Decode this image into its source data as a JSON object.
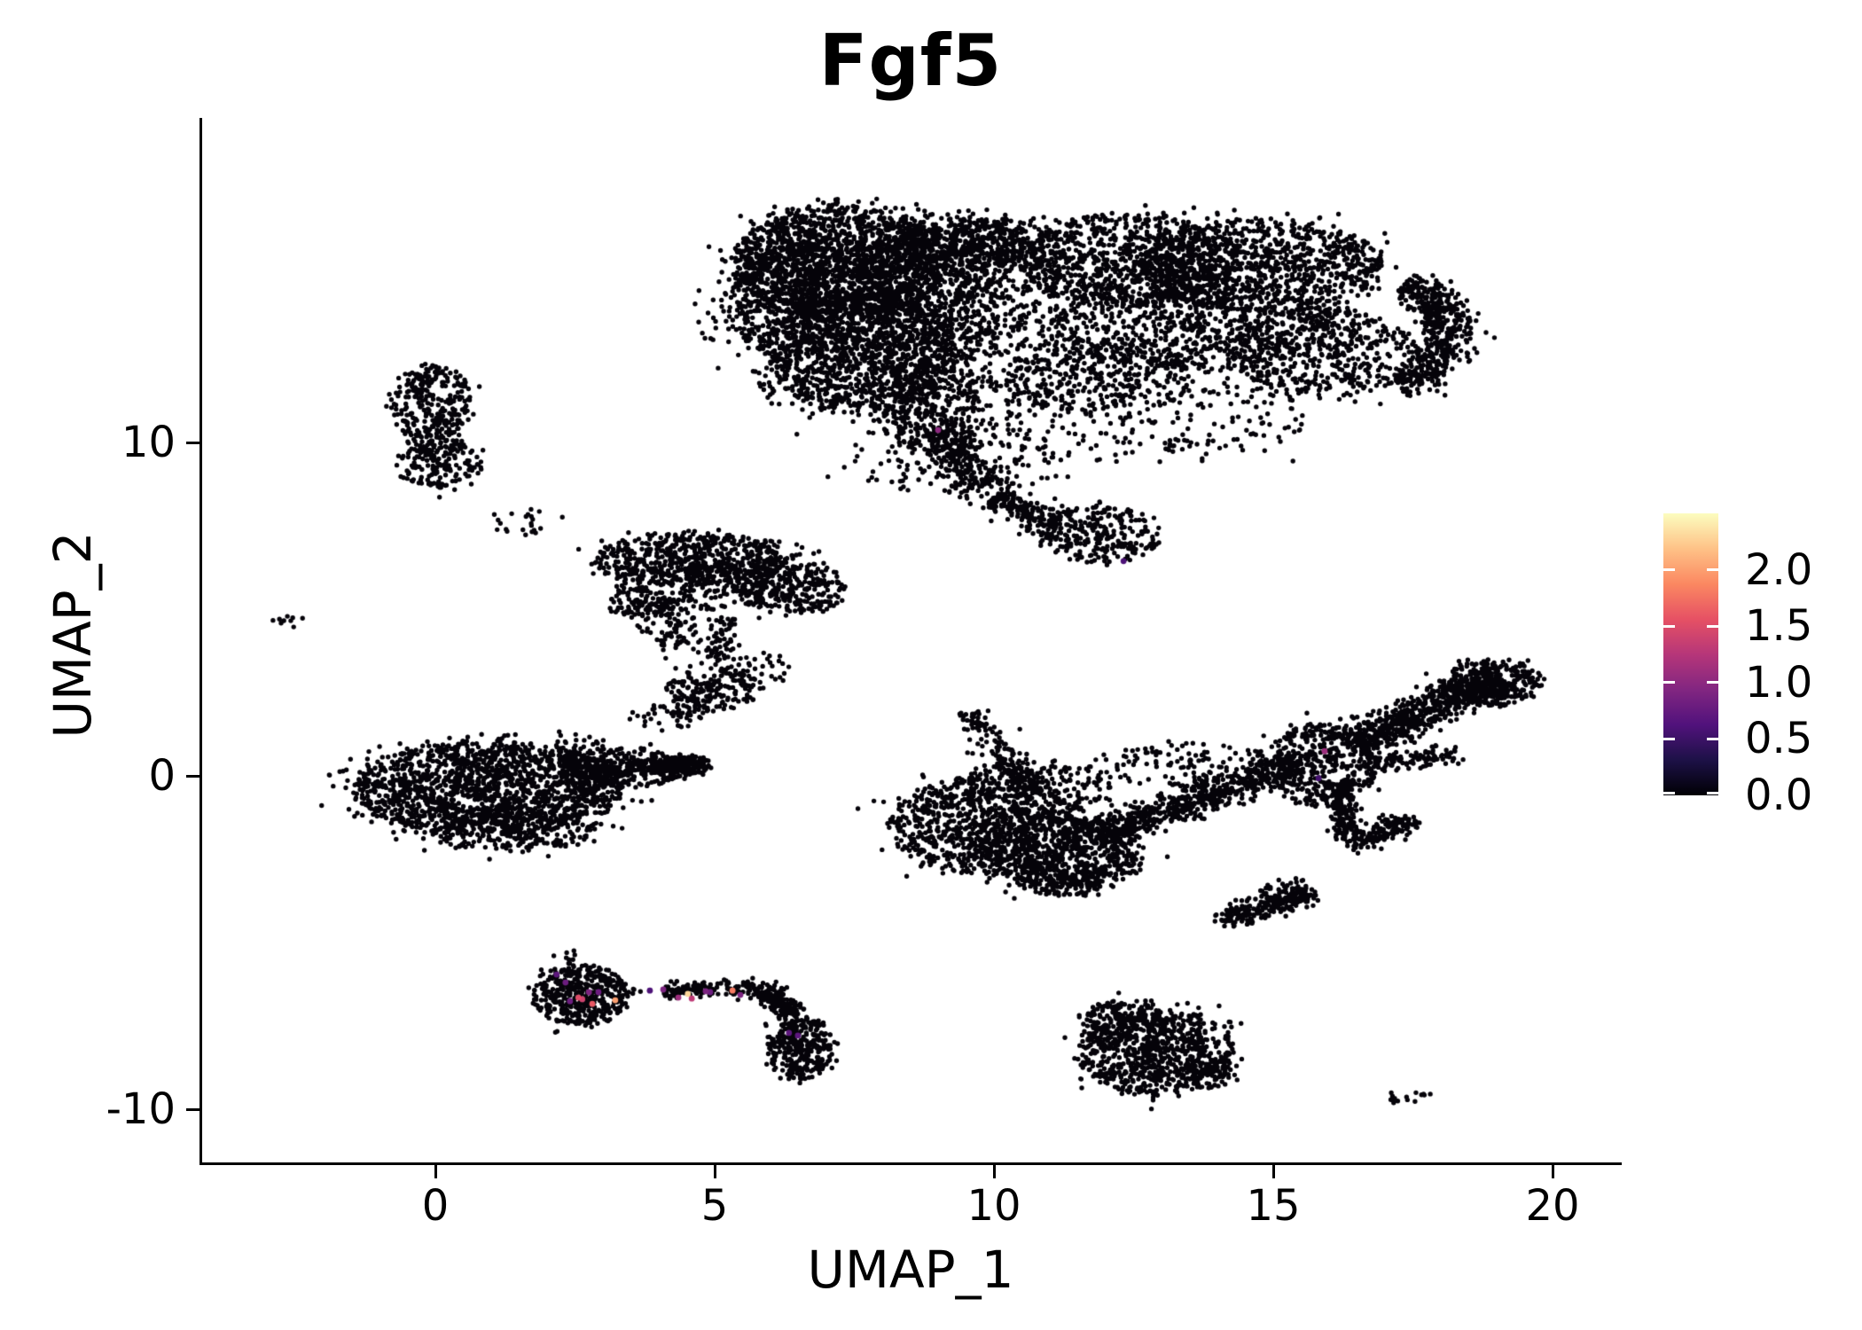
{
  "chart_data": {
    "type": "scatter",
    "title": "Fgf5",
    "xlabel": "UMAP_1",
    "ylabel": "UMAP_2",
    "x_ticks": [
      0,
      5,
      10,
      15,
      20
    ],
    "y_ticks": [
      -10,
      0,
      10
    ],
    "xlim": [
      -4.2,
      21.2
    ],
    "ylim": [
      -11.6,
      19.7
    ],
    "background": "#ffffff",
    "axis_color": "#000000",
    "legend_position": "right",
    "point": {
      "zero_color": "#050309",
      "radius_px": 2.7,
      "highlight_radius_px": 3.4
    },
    "colorbar": {
      "vmin": 0.0,
      "vmax": 2.5,
      "ticks": [
        0.0,
        0.5,
        1.0,
        1.5,
        2.0
      ],
      "tick_labels": [
        "0.0",
        "0.5",
        "1.0",
        "1.5",
        "2.0"
      ],
      "colormap": "magma",
      "stops": [
        "#000004",
        "#1d1147",
        "#51127c",
        "#822681",
        "#b63679",
        "#e65164",
        "#fb8861",
        "#fec287",
        "#fcfdbf"
      ]
    },
    "seed": 42,
    "clusters": [
      {
        "k": "g",
        "cx": 7.25,
        "cy": 15.4,
        "rx": 1.9,
        "ry": 1.7,
        "n": 1500
      },
      {
        "k": "g",
        "cx": 6.3,
        "cy": 14.2,
        "rx": 1.0,
        "ry": 1.7,
        "n": 450
      },
      {
        "k": "g",
        "cx": 7.6,
        "cy": 12.7,
        "rx": 1.7,
        "ry": 1.8,
        "n": 1050
      },
      {
        "k": "g",
        "cx": 8.65,
        "cy": 14.1,
        "rx": 1.4,
        "ry": 2.2,
        "n": 650
      },
      {
        "k": "g",
        "cx": 7.6,
        "cy": 14.0,
        "rx": 3.0,
        "ry": 3.4,
        "n": 450
      },
      {
        "k": "g",
        "cx": 9.3,
        "cy": 15.9,
        "rx": 1.2,
        "ry": 0.9,
        "n": 300
      },
      {
        "k": "g",
        "cx": 8.9,
        "cy": 10.9,
        "rx": 0.9,
        "ry": 1.3,
        "n": 300
      },
      {
        "k": "g",
        "cx": 10.4,
        "cy": 13.5,
        "rx": 1.3,
        "ry": 2.3,
        "n": 330
      },
      {
        "k": "g",
        "cx": 10.2,
        "cy": 15.9,
        "rx": 1.1,
        "ry": 0.8,
        "n": 250
      },
      {
        "k": "g",
        "cx": 12.5,
        "cy": 15.5,
        "rx": 1.9,
        "ry": 1.4,
        "n": 850
      },
      {
        "k": "g",
        "cx": 14.8,
        "cy": 15.3,
        "rx": 2.2,
        "ry": 1.4,
        "n": 950
      },
      {
        "k": "g",
        "cx": 13.6,
        "cy": 13.6,
        "rx": 2.5,
        "ry": 1.5,
        "n": 750
      },
      {
        "k": "g",
        "cx": 15.9,
        "cy": 12.7,
        "rx": 1.7,
        "ry": 1.3,
        "n": 500
      },
      {
        "k": "g",
        "cx": 11.9,
        "cy": 12.0,
        "rx": 1.7,
        "ry": 1.2,
        "n": 320
      },
      {
        "k": "g",
        "cx": 12.7,
        "cy": 10.7,
        "rx": 2.9,
        "ry": 1.4,
        "n": 230
      },
      {
        "k": "a",
        "cx": 16.5,
        "cy": 13.3,
        "r": 1.7,
        "a1": -65,
        "a2": 60,
        "w": 0.8,
        "n": 500
      },
      {
        "k": "s",
        "x1": 8.95,
        "y1": 10.4,
        "x2": 9.85,
        "y2": 8.6,
        "w1": 0.8,
        "w2": 0.8,
        "n": 240
      },
      {
        "k": "s",
        "x1": 10.0,
        "y1": 8.4,
        "x2": 11.15,
        "y2": 7.5,
        "w1": 0.7,
        "w2": 0.7,
        "n": 180
      },
      {
        "k": "g",
        "cx": 11.9,
        "cy": 7.25,
        "rx": 1.1,
        "ry": 0.85,
        "n": 260
      },
      {
        "k": "g",
        "cx": 9.2,
        "cy": 9.5,
        "rx": 2.0,
        "ry": 1.2,
        "n": 140
      },
      {
        "k": "g",
        "cx": -0.05,
        "cy": 11.2,
        "rx": 0.75,
        "ry": 1.1,
        "n": 240
      },
      {
        "k": "g",
        "cx": 0.1,
        "cy": 9.4,
        "rx": 0.75,
        "ry": 0.8,
        "n": 160
      },
      {
        "k": "g",
        "cx": 0.0,
        "cy": 10.3,
        "rx": 0.5,
        "ry": 0.7,
        "n": 70
      },
      {
        "k": "g",
        "cx": -2.65,
        "cy": 4.65,
        "rx": 0.33,
        "ry": 0.17,
        "n": 9
      },
      {
        "k": "g",
        "cx": 1.6,
        "cy": 7.6,
        "rx": 0.7,
        "ry": 0.4,
        "n": 22
      },
      {
        "k": "g",
        "cx": 4.6,
        "cy": 6.5,
        "rx": 1.75,
        "ry": 0.8,
        "n": 600
      },
      {
        "k": "g",
        "cx": 6.35,
        "cy": 5.65,
        "rx": 1.0,
        "ry": 0.8,
        "n": 300
      },
      {
        "k": "g",
        "cx": 3.6,
        "cy": 5.15,
        "rx": 0.5,
        "ry": 0.45,
        "n": 70
      },
      {
        "k": "g",
        "cx": 4.7,
        "cy": 5.7,
        "rx": 1.5,
        "ry": 0.75,
        "n": 200
      },
      {
        "k": "g",
        "cx": 4.2,
        "cy": 4.5,
        "rx": 0.5,
        "ry": 0.8,
        "n": 90
      },
      {
        "k": "s",
        "x1": 5.2,
        "y1": 4.8,
        "x2": 4.95,
        "y2": 3.5,
        "w1": 0.5,
        "w2": 0.5,
        "n": 70
      },
      {
        "k": "g",
        "cx": 5.0,
        "cy": 2.62,
        "rx": 0.85,
        "ry": 0.6,
        "n": 170
      },
      {
        "k": "g",
        "cx": 4.4,
        "cy": 1.9,
        "rx": 0.37,
        "ry": 0.5,
        "n": 25
      },
      {
        "k": "g",
        "cx": 5.7,
        "cy": 3.2,
        "rx": 0.75,
        "ry": 0.5,
        "n": 40
      },
      {
        "k": "g",
        "cx": 0.95,
        "cy": -0.35,
        "rx": 2.4,
        "ry": 1.4,
        "n": 1600
      },
      {
        "k": "g",
        "cx": 1.4,
        "cy": -1.6,
        "rx": 1.5,
        "ry": 0.65,
        "n": 280
      },
      {
        "k": "s",
        "x1": 2.3,
        "y1": 0.15,
        "x2": 4.85,
        "y2": 0.35,
        "w1": 1.5,
        "w2": 0.3,
        "n": 650
      },
      {
        "k": "g",
        "cx": 4.25,
        "cy": 1.75,
        "rx": 0.8,
        "ry": 0.45,
        "n": 35
      },
      {
        "k": "s",
        "x1": 9.5,
        "y1": 1.95,
        "x2": 10.7,
        "y2": -0.4,
        "w1": 0.6,
        "w2": 0.6,
        "n": 150
      },
      {
        "k": "g",
        "cx": 9.9,
        "cy": -1.5,
        "rx": 1.75,
        "ry": 1.5,
        "n": 900
      },
      {
        "k": "g",
        "cx": 11.2,
        "cy": -2.3,
        "rx": 1.5,
        "ry": 1.1,
        "n": 550
      },
      {
        "k": "g",
        "cx": 11.3,
        "cy": -3.1,
        "rx": 0.9,
        "ry": 0.55,
        "n": 160
      },
      {
        "k": "g",
        "cx": 10.7,
        "cy": -0.35,
        "rx": 1.5,
        "ry": 0.8,
        "n": 200
      },
      {
        "k": "s",
        "x1": 11.7,
        "y1": -1.85,
        "x2": 15.4,
        "y2": 0.35,
        "w1": 0.8,
        "w2": 0.8,
        "n": 650
      },
      {
        "k": "g",
        "cx": 13.4,
        "cy": 0.3,
        "rx": 1.8,
        "ry": 0.7,
        "n": 120
      },
      {
        "k": "g",
        "cx": 15.9,
        "cy": 0.35,
        "rx": 1.0,
        "ry": 1.3,
        "n": 400
      },
      {
        "k": "s",
        "x1": 16.35,
        "y1": 0.95,
        "x2": 19.1,
        "y2": 2.95,
        "w1": 0.85,
        "w2": 0.85,
        "n": 650
      },
      {
        "k": "g",
        "cx": 18.9,
        "cy": 2.8,
        "rx": 0.9,
        "ry": 0.7,
        "n": 280
      },
      {
        "k": "s",
        "x1": 16.6,
        "y1": 0.3,
        "x2": 18.3,
        "y2": 0.7,
        "w1": 0.5,
        "w2": 0.5,
        "n": 130
      },
      {
        "k": "s",
        "x1": 16.15,
        "y1": -0.15,
        "x2": 16.35,
        "y2": -1.95,
        "w1": 0.5,
        "w2": 0.5,
        "n": 170
      },
      {
        "k": "s",
        "x1": 16.4,
        "y1": -2.05,
        "x2": 17.5,
        "y2": -1.3,
        "w1": 0.5,
        "w2": 0.5,
        "n": 150
      },
      {
        "k": "s",
        "x1": 14.05,
        "y1": -4.35,
        "x2": 15.65,
        "y2": -3.45,
        "w1": 0.5,
        "w2": 0.5,
        "n": 180
      },
      {
        "k": "g",
        "cx": 15.25,
        "cy": -3.6,
        "rx": 0.55,
        "ry": 0.5,
        "n": 80
      },
      {
        "k": "g",
        "cx": 12.9,
        "cy": -8.3,
        "rx": 1.4,
        "ry": 1.3,
        "n": 750
      },
      {
        "k": "g",
        "cx": 12.35,
        "cy": -7.5,
        "rx": 0.8,
        "ry": 0.75,
        "n": 220
      },
      {
        "k": "g",
        "cx": 13.75,
        "cy": -8.9,
        "rx": 0.5,
        "ry": 0.5,
        "n": 60
      },
      {
        "k": "g",
        "cx": 17.35,
        "cy": -9.6,
        "rx": 0.45,
        "ry": 0.2,
        "n": 16
      },
      {
        "k": "g",
        "cx": 2.6,
        "cy": -6.6,
        "rx": 0.85,
        "ry": 0.9,
        "n": 420
      },
      {
        "k": "s",
        "x1": 2.3,
        "y1": -5.3,
        "x2": 2.55,
        "y2": -6.1,
        "w1": 0.25,
        "w2": 0.25,
        "n": 20
      },
      {
        "k": "s",
        "x1": 4.05,
        "y1": -6.45,
        "x2": 5.75,
        "y2": -6.35,
        "w1": 0.38,
        "w2": 0.38,
        "n": 130
      },
      {
        "k": "g",
        "cx": 3.55,
        "cy": -6.5,
        "rx": 0.2,
        "ry": 0.2,
        "n": 6
      },
      {
        "k": "s",
        "x1": 5.8,
        "y1": -6.35,
        "x2": 6.45,
        "y2": -7.1,
        "w1": 0.45,
        "w2": 0.45,
        "n": 150
      },
      {
        "k": "s",
        "x1": 6.05,
        "y1": -6.9,
        "x2": 6.6,
        "y2": -7.5,
        "w1": 0.33,
        "w2": 0.33,
        "n": 40
      },
      {
        "k": "g",
        "cx": 6.55,
        "cy": -8.2,
        "rx": 0.62,
        "ry": 0.9,
        "n": 300
      }
    ],
    "expressing_cells": [
      {
        "x": 2.17,
        "y": -5.96,
        "v": 0.7
      },
      {
        "x": 2.33,
        "y": -6.2,
        "v": 0.8
      },
      {
        "x": 2.75,
        "y": -6.49,
        "v": 0.9
      },
      {
        "x": 2.92,
        "y": -6.49,
        "v": 0.8
      },
      {
        "x": 2.41,
        "y": -6.76,
        "v": 0.8
      },
      {
        "x": 2.56,
        "y": -6.65,
        "v": 1.5
      },
      {
        "x": 2.63,
        "y": -6.7,
        "v": 1.4
      },
      {
        "x": 2.81,
        "y": -6.84,
        "v": 1.6
      },
      {
        "x": 3.22,
        "y": -6.73,
        "v": 2.0
      },
      {
        "x": 3.84,
        "y": -6.44,
        "v": 0.6
      },
      {
        "x": 4.08,
        "y": -6.41,
        "v": 0.9
      },
      {
        "x": 4.35,
        "y": -6.65,
        "v": 1.1
      },
      {
        "x": 4.52,
        "y": -6.54,
        "v": 2.3
      },
      {
        "x": 4.59,
        "y": -6.68,
        "v": 1.3
      },
      {
        "x": 4.84,
        "y": -6.46,
        "v": 0.9
      },
      {
        "x": 4.92,
        "y": -6.49,
        "v": 0.8
      },
      {
        "x": 5.32,
        "y": -6.44,
        "v": 1.8
      },
      {
        "x": 5.46,
        "y": -6.57,
        "v": 0.9
      },
      {
        "x": 6.33,
        "y": -7.71,
        "v": 0.7
      },
      {
        "x": 6.49,
        "y": -7.79,
        "v": 0.7
      },
      {
        "x": 9.0,
        "y": 10.37,
        "v": 1.0
      },
      {
        "x": 12.32,
        "y": 6.44,
        "v": 0.6
      },
      {
        "x": 15.92,
        "y": 0.74,
        "v": 1.1
      },
      {
        "x": 15.81,
        "y": -0.07,
        "v": 0.55
      }
    ]
  }
}
